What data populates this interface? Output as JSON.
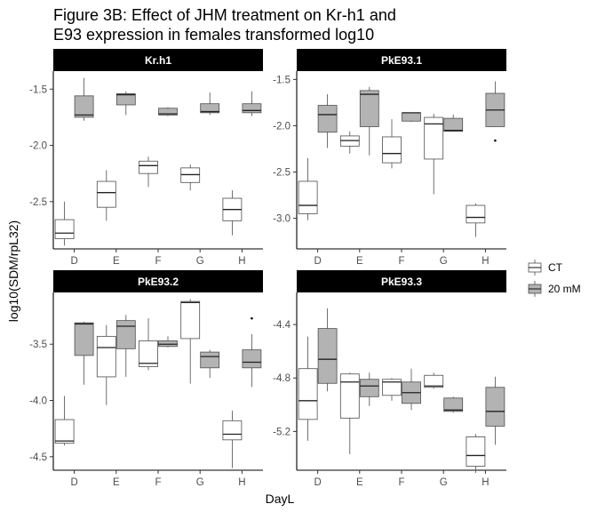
{
  "figure": {
    "title_line1": "Figure 3B: Effect of JHM treatment on Kr-h1 and",
    "title_line2": "E93 expression in females transformed log10"
  },
  "chart_data": {
    "type": "boxplot",
    "xlabel": "DayL",
    "ylabel": "log10(SDM/rpL32)",
    "categories": [
      "D",
      "E",
      "F",
      "G",
      "H"
    ],
    "legend": {
      "position": "right",
      "entries": [
        {
          "name": "CT",
          "color": "#ffffff"
        },
        {
          "name": "20 mM",
          "color": "#b3b3b3"
        }
      ]
    },
    "panels": [
      {
        "title": "Kr.h1",
        "ylim": [
          -2.92,
          -1.34
        ],
        "yticks": [
          -1.5,
          -2.0,
          -2.5
        ],
        "ytick_labels": [
          "-1.5",
          "-2.0",
          "-2.5"
        ],
        "series": [
          {
            "name": "CT",
            "boxes": [
              {
                "x": "D",
                "min": -2.89,
                "q1": -2.83,
                "median": -2.78,
                "q3": -2.66,
                "max": -2.5
              },
              {
                "x": "E",
                "min": -2.67,
                "q1": -2.55,
                "median": -2.42,
                "q3": -2.32,
                "max": -2.22
              },
              {
                "x": "F",
                "min": -2.37,
                "q1": -2.25,
                "median": -2.18,
                "q3": -2.14,
                "max": -2.1
              },
              {
                "x": "G",
                "min": -2.4,
                "q1": -2.33,
                "median": -2.26,
                "q3": -2.2,
                "max": -2.17
              },
              {
                "x": "H",
                "min": -2.8,
                "q1": -2.67,
                "median": -2.57,
                "q3": -2.47,
                "max": -2.4
              }
            ]
          },
          {
            "name": "20 mM",
            "boxes": [
              {
                "x": "D",
                "min": -1.78,
                "q1": -1.75,
                "median": -1.73,
                "q3": -1.56,
                "max": -1.4
              },
              {
                "x": "E",
                "min": -1.73,
                "q1": -1.64,
                "median": -1.55,
                "q3": -1.54,
                "max": -1.52
              },
              {
                "x": "F",
                "min": -1.74,
                "q1": -1.73,
                "median": -1.72,
                "q3": -1.67,
                "max": -1.66
              },
              {
                "x": "G",
                "min": -1.73,
                "q1": -1.71,
                "median": -1.7,
                "q3": -1.63,
                "max": -1.53
              },
              {
                "x": "H",
                "min": -1.74,
                "q1": -1.71,
                "median": -1.69,
                "q3": -1.63,
                "max": -1.52
              }
            ]
          }
        ]
      },
      {
        "title": "PkE93.1",
        "ylim": [
          -3.33,
          -1.41
        ],
        "yticks": [
          -1.5,
          -2.0,
          -2.5,
          -3.0
        ],
        "ytick_labels": [
          "-1.5",
          "-2.0",
          "-2.5",
          "-3.0"
        ],
        "series": [
          {
            "name": "CT",
            "boxes": [
              {
                "x": "D",
                "min": -3.02,
                "q1": -2.95,
                "median": -2.86,
                "q3": -2.6,
                "max": -2.35
              },
              {
                "x": "E",
                "min": -2.3,
                "q1": -2.22,
                "median": -2.16,
                "q3": -2.11,
                "max": -2.06
              },
              {
                "x": "F",
                "min": -2.46,
                "q1": -2.4,
                "median": -2.3,
                "q3": -2.12,
                "max": -1.93
              },
              {
                "x": "G",
                "min": -2.74,
                "q1": -2.36,
                "median": -1.98,
                "q3": -1.91,
                "max": -1.87
              },
              {
                "x": "H",
                "min": -3.2,
                "q1": -3.05,
                "median": -2.99,
                "q3": -2.86,
                "max": -2.84
              }
            ]
          },
          {
            "name": "20 mM",
            "boxes": [
              {
                "x": "D",
                "min": -2.24,
                "q1": -2.07,
                "median": -1.88,
                "q3": -1.78,
                "max": -1.66
              },
              {
                "x": "E",
                "min": -2.32,
                "q1": -2.01,
                "median": -1.66,
                "q3": -1.62,
                "max": -1.58
              },
              {
                "x": "F",
                "min": -1.96,
                "q1": -1.95,
                "median": -1.86,
                "q3": -1.86,
                "max": -1.86
              },
              {
                "x": "G",
                "min": -2.06,
                "q1": -2.06,
                "median": -2.05,
                "q3": -1.92,
                "max": -1.88
              },
              {
                "x": "H",
                "min": -2.01,
                "q1": -2.01,
                "median": -1.83,
                "q3": -1.65,
                "max": -1.52,
                "outliers": [
                  -2.16
                ]
              }
            ]
          }
        ]
      },
      {
        "title": "PkE93.2",
        "ylim": [
          -4.62,
          -3.04
        ],
        "yticks": [
          -3.5,
          -4.0,
          -4.5
        ],
        "ytick_labels": [
          "-3.5",
          "-4.0",
          "-4.5"
        ],
        "series": [
          {
            "name": "CT",
            "boxes": [
              {
                "x": "D",
                "min": -4.4,
                "q1": -4.38,
                "median": -4.36,
                "q3": -4.17,
                "max": -3.96
              },
              {
                "x": "E",
                "min": -4.04,
                "q1": -3.79,
                "median": -3.53,
                "q3": -3.43,
                "max": -3.33
              },
              {
                "x": "F",
                "min": -3.73,
                "q1": -3.7,
                "median": -3.67,
                "q3": -3.47,
                "max": -3.27
              },
              {
                "x": "G",
                "min": -3.85,
                "q1": -3.45,
                "median": -3.13,
                "q3": -3.12,
                "max": -3.1
              },
              {
                "x": "H",
                "min": -4.6,
                "q1": -4.35,
                "median": -4.3,
                "q3": -4.18,
                "max": -4.09
              }
            ]
          },
          {
            "name": "20 mM",
            "boxes": [
              {
                "x": "D",
                "min": -3.86,
                "q1": -3.6,
                "median": -3.32,
                "q3": -3.31,
                "max": -3.3
              },
              {
                "x": "E",
                "min": -3.79,
                "q1": -3.54,
                "median": -3.34,
                "q3": -3.29,
                "max": -3.24
              },
              {
                "x": "F",
                "min": -3.53,
                "q1": -3.52,
                "median": -3.5,
                "q3": -3.47,
                "max": -3.43
              },
              {
                "x": "G",
                "min": -3.8,
                "q1": -3.71,
                "median": -3.61,
                "q3": -3.57,
                "max": -3.55
              },
              {
                "x": "H",
                "min": -3.88,
                "q1": -3.71,
                "median": -3.66,
                "q3": -3.55,
                "max": -3.41,
                "outliers": [
                  -3.27
                ]
              }
            ]
          }
        ]
      },
      {
        "title": "PkE93.3",
        "ylim": [
          -5.49,
          -4.16
        ],
        "yticks": [
          -4.4,
          -4.8,
          -5.2
        ],
        "ytick_labels": [
          "-4.4",
          "-4.8",
          "-5.2"
        ],
        "series": [
          {
            "name": "CT",
            "boxes": [
              {
                "x": "D",
                "min": -5.27,
                "q1": -5.11,
                "median": -4.97,
                "q3": -4.73,
                "max": -4.49
              },
              {
                "x": "E",
                "min": -5.37,
                "q1": -5.1,
                "median": -4.83,
                "q3": -4.77,
                "max": -4.76
              },
              {
                "x": "F",
                "min": -4.97,
                "q1": -4.93,
                "median": -4.83,
                "q3": -4.81,
                "max": -4.8
              },
              {
                "x": "G",
                "min": -4.88,
                "q1": -4.87,
                "median": -4.86,
                "q3": -4.78,
                "max": -4.76
              },
              {
                "x": "H",
                "min": -5.51,
                "q1": -5.46,
                "median": -5.38,
                "q3": -5.24,
                "max": -5.22
              }
            ]
          },
          {
            "name": "20 mM",
            "boxes": [
              {
                "x": "D",
                "min": -4.9,
                "q1": -4.84,
                "median": -4.66,
                "q3": -4.43,
                "max": -4.28
              },
              {
                "x": "E",
                "min": -5.01,
                "q1": -4.94,
                "median": -4.86,
                "q3": -4.81,
                "max": -4.76
              },
              {
                "x": "F",
                "min": -5.04,
                "q1": -4.99,
                "median": -4.91,
                "q3": -4.83,
                "max": -4.73
              },
              {
                "x": "G",
                "min": -5.06,
                "q1": -5.05,
                "median": -5.04,
                "q3": -4.95,
                "max": -4.94
              },
              {
                "x": "H",
                "min": -5.3,
                "q1": -5.16,
                "median": -5.05,
                "q3": -4.87,
                "max": -4.79
              }
            ]
          }
        ]
      }
    ]
  }
}
